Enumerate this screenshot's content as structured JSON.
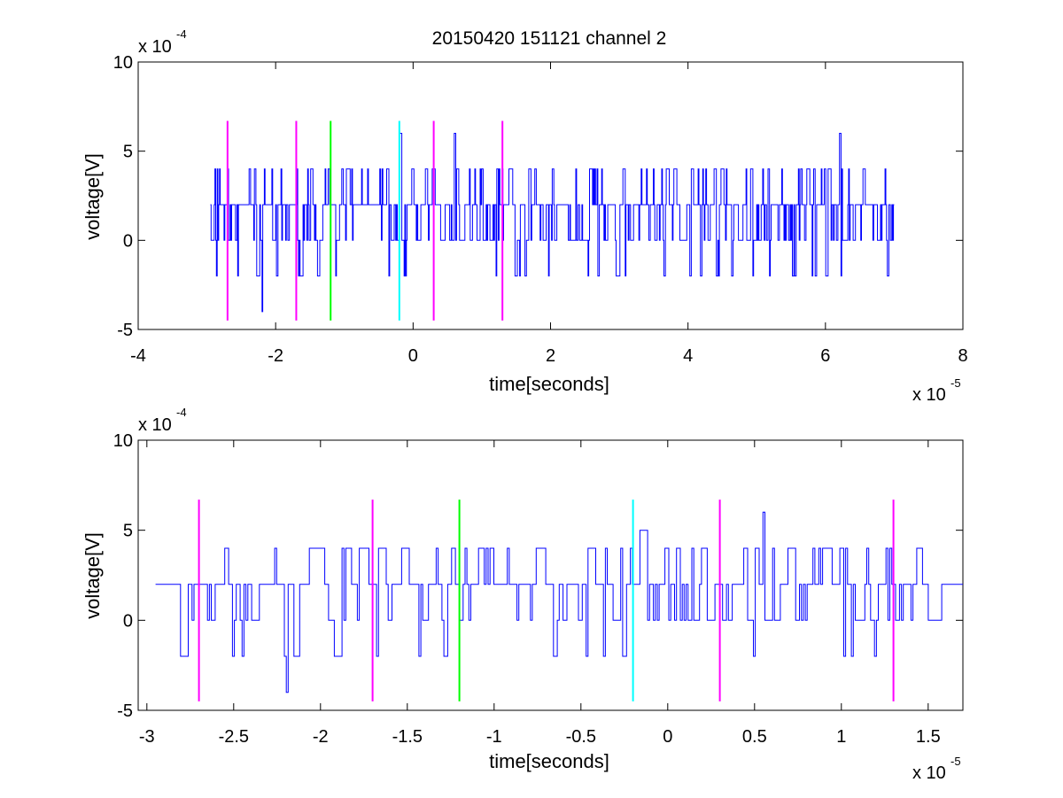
{
  "title": "20150420 151121 channel 2",
  "chart_data": [
    {
      "type": "line",
      "panel": "top",
      "xlabel": "time[seconds]",
      "ylabel": "voltage[V]",
      "x_exponent_label": "x 10",
      "x_exponent": "-5",
      "y_exponent_label": "x 10",
      "y_exponent": "-4",
      "xlim": [
        -4,
        8
      ],
      "ylim": [
        -5,
        10
      ],
      "x_ticks": [
        -4,
        -2,
        0,
        2,
        4,
        6,
        8
      ],
      "y_ticks": [
        -5,
        0,
        5,
        10
      ],
      "series": [
        {
          "color": "#0000ff",
          "description_values": "noisy quantized signal between x=-2.95 and x=7.0, values step among -4,-2,0,2,4,6",
          "x_start": -2.95,
          "x_end": 7.0,
          "spikes": [
            {
              "x": -0.2,
              "y": 6
            },
            {
              "x": 0.6,
              "y": 6
            },
            {
              "x": 6.2,
              "y": 6
            },
            {
              "x": -2.2,
              "y": -4
            }
          ]
        }
      ],
      "markers": [
        {
          "x": -2.7,
          "color": "#ff00ff",
          "y_range": [
            -4.5,
            6.7
          ]
        },
        {
          "x": -1.7,
          "color": "#ff00ff",
          "y_range": [
            -4.5,
            6.7
          ]
        },
        {
          "x": -1.2,
          "color": "#00ff00",
          "y_range": [
            -4.5,
            6.7
          ]
        },
        {
          "x": -0.2,
          "color": "#00ffff",
          "y_range": [
            -4.5,
            6.7
          ]
        },
        {
          "x": 0.3,
          "color": "#ff00ff",
          "y_range": [
            -4.5,
            6.7
          ]
        },
        {
          "x": 1.3,
          "color": "#ff00ff",
          "y_range": [
            -4.5,
            6.7
          ]
        }
      ]
    },
    {
      "type": "line",
      "panel": "bottom",
      "xlabel": "time[seconds]",
      "ylabel": "voltage[V]",
      "x_exponent_label": "x 10",
      "x_exponent": "-5",
      "y_exponent_label": "x 10",
      "y_exponent": "-4",
      "xlim": [
        -3.05,
        1.7
      ],
      "ylim": [
        -5,
        10
      ],
      "x_ticks": [
        -3,
        -2.5,
        -2,
        -1.5,
        -1,
        -0.5,
        0,
        0.5,
        1,
        1.5
      ],
      "y_ticks": [
        -5,
        0,
        5,
        10
      ],
      "series": [
        {
          "color": "#0000ff",
          "x_start": -2.95,
          "x_end": 1.7,
          "spikes": [
            {
              "x": -0.16,
              "y": 5
            },
            {
              "x": 0.55,
              "y": 6
            },
            {
              "x": -2.2,
              "y": -4
            }
          ]
        }
      ],
      "markers": [
        {
          "x": -2.7,
          "color": "#ff00ff",
          "y_range": [
            -4.5,
            6.7
          ]
        },
        {
          "x": -1.7,
          "color": "#ff00ff",
          "y_range": [
            -4.5,
            6.7
          ]
        },
        {
          "x": -1.2,
          "color": "#00ff00",
          "y_range": [
            -4.5,
            6.7
          ]
        },
        {
          "x": -0.2,
          "color": "#00ffff",
          "y_range": [
            -4.5,
            6.7
          ]
        },
        {
          "x": 0.3,
          "color": "#ff00ff",
          "y_range": [
            -4.5,
            6.7
          ]
        },
        {
          "x": 1.3,
          "color": "#ff00ff",
          "y_range": [
            -4.5,
            6.7
          ]
        }
      ]
    }
  ]
}
